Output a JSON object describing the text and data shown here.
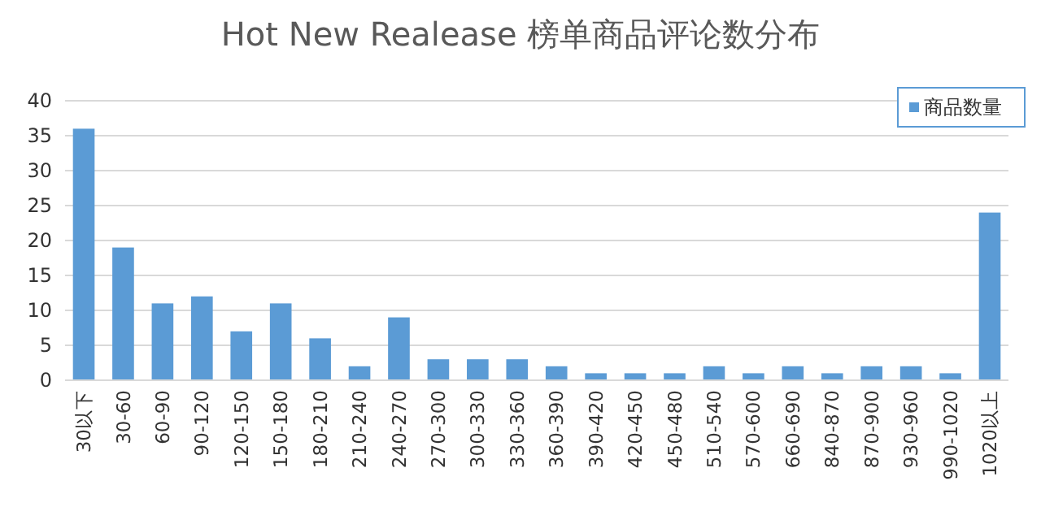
{
  "chart_data": {
    "type": "bar",
    "title": "Hot New Realease 榜单商品评论数分布",
    "categories": [
      "30以下",
      "30-60",
      "60-90",
      "90-120",
      "120-150",
      "150-180",
      "180-210",
      "210-240",
      "240-270",
      "270-300",
      "300-330",
      "330-360",
      "360-390",
      "390-420",
      "420-450",
      "450-480",
      "510-540",
      "570-600",
      "660-690",
      "840-870",
      "870-900",
      "930-960",
      "990-1020",
      "1020以上"
    ],
    "series": [
      {
        "name": "商品数量",
        "color": "#5b9bd5",
        "values": [
          36,
          19,
          11,
          12,
          7,
          11,
          6,
          2,
          9,
          3,
          3,
          3,
          2,
          1,
          1,
          1,
          2,
          1,
          2,
          1,
          2,
          2,
          1,
          24
        ]
      }
    ],
    "ylim": [
      0,
      40
    ],
    "yticks": [
      0,
      5,
      10,
      15,
      20,
      25,
      30,
      35,
      40
    ],
    "grid": "y",
    "legend": "top right"
  }
}
